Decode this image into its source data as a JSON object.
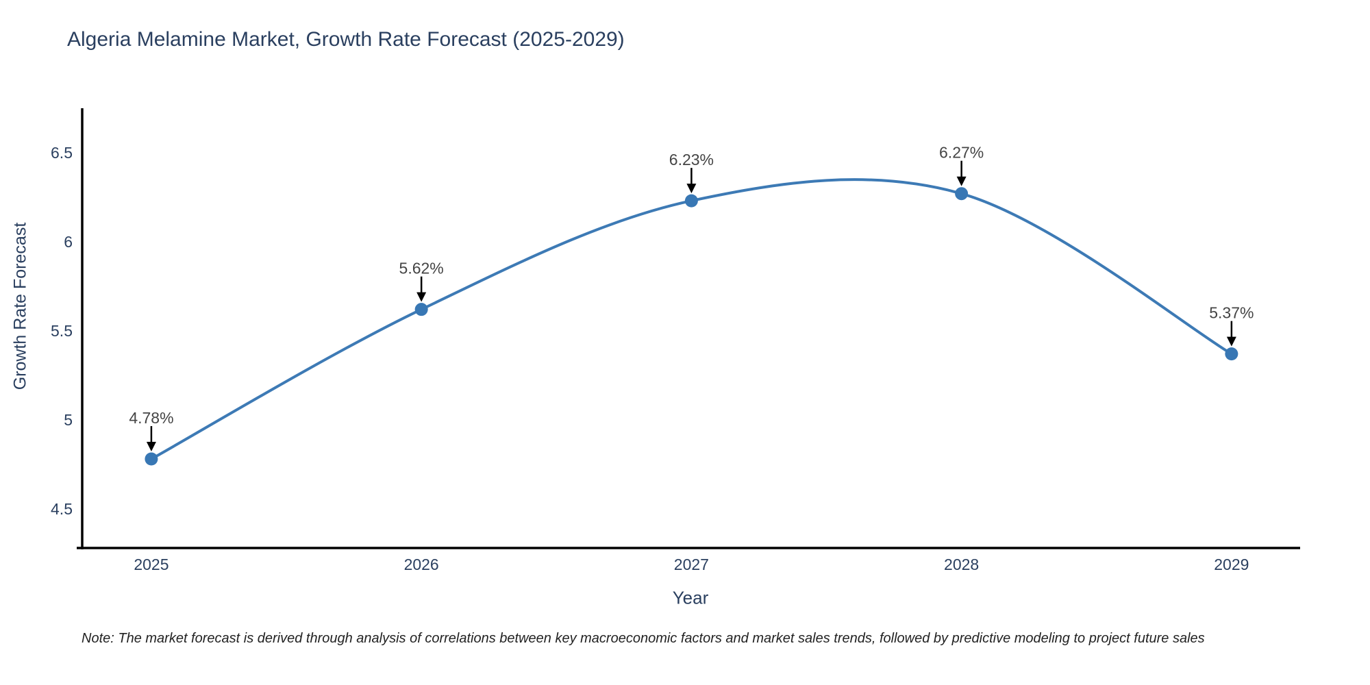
{
  "chart_data": {
    "type": "line",
    "title": "Algeria Melamine Market, Growth Rate Forecast (2025-2029)",
    "xlabel": "Year",
    "ylabel": "Growth Rate Forecast",
    "x": [
      2025,
      2026,
      2027,
      2028,
      2029
    ],
    "series": [
      {
        "name": "Growth Rate Forecast",
        "values": [
          4.78,
          5.62,
          6.23,
          6.27,
          5.37
        ]
      }
    ],
    "point_labels": [
      "4.78%",
      "5.62%",
      "6.23%",
      "6.27%",
      "5.37%"
    ],
    "x_ticks": [
      "2025",
      "2026",
      "2027",
      "2028",
      "2029"
    ],
    "y_ticks": [
      4.5,
      5,
      5.5,
      6,
      6.5
    ],
    "xlim": [
      2024.744,
      2029.254
    ],
    "ylim": [
      4.28,
      6.742
    ],
    "line_shape": "spline",
    "grid": false,
    "legend_position": "none",
    "line_color": "#3d7ab5",
    "marker_color": "#3877b4",
    "annotation_arrow_color": "#000000"
  },
  "note": "Note: The market forecast is derived through analysis of correlations between key macroeconomic factors and market sales trends, followed by predictive modeling to project future sales",
  "colors": {
    "title": "#2a3f5f",
    "axis_text": "#2a3f5f",
    "annotation_text": "#444444",
    "spine": "#000000",
    "background": "#ffffff"
  }
}
